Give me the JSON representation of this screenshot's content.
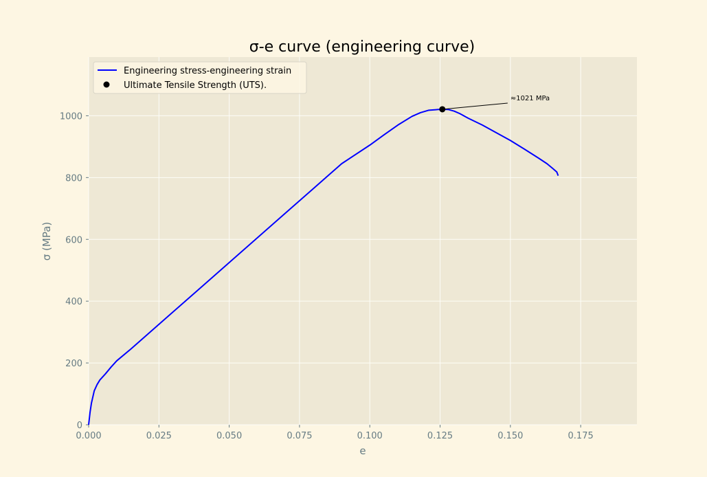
{
  "chart_data": {
    "type": "line",
    "title": "σ-e curve (engineering curve)",
    "xlabel": "e",
    "ylabel": "σ (MPa)",
    "xlim": [
      0.0,
      0.195
    ],
    "ylim": [
      0,
      1190
    ],
    "xticks": [
      0.0,
      0.025,
      0.05,
      0.075,
      0.1,
      0.125,
      0.15,
      0.175
    ],
    "xtick_labels": [
      "0.000",
      "0.025",
      "0.050",
      "0.075",
      "0.100",
      "0.125",
      "0.150",
      "0.175"
    ],
    "yticks": [
      0,
      200,
      400,
      600,
      800,
      1000
    ],
    "ytick_labels": [
      "0",
      "200",
      "400",
      "600",
      "800",
      "1000"
    ],
    "grid": true,
    "legend_position": "top-left",
    "series": [
      {
        "name": "Engineering stress-engineering strain",
        "color": "#0000ff",
        "x": [
          0.0,
          0.0005,
          0.001,
          0.002,
          0.003,
          0.004,
          0.006,
          0.008,
          0.01,
          0.015,
          0.02,
          0.03,
          0.04,
          0.05,
          0.06,
          0.07,
          0.08,
          0.09,
          0.1,
          0.105,
          0.11,
          0.115,
          0.118,
          0.121,
          0.124,
          0.126,
          0.128,
          0.13,
          0.132,
          0.135,
          0.14,
          0.145,
          0.15,
          0.155,
          0.16,
          0.163,
          0.165,
          0.1665,
          0.167
        ],
        "y": [
          0,
          40,
          70,
          110,
          130,
          145,
          165,
          187,
          207,
          245,
          285,
          365,
          445,
          525,
          605,
          685,
          765,
          845,
          905,
          938,
          970,
          998,
          1010,
          1018,
          1020,
          1021,
          1020,
          1015,
          1007,
          992,
          970,
          945,
          920,
          892,
          863,
          845,
          830,
          818,
          806
        ]
      }
    ],
    "markers": [
      {
        "name": "Ultimate Tensile Strength (UTS).",
        "color": "#000000",
        "x": 0.1258,
        "y": 1021
      }
    ],
    "annotations": [
      {
        "text": "≈1021 MPa",
        "x": 0.15,
        "y": 1050,
        "point_x": 0.1258,
        "point_y": 1021
      }
    ]
  },
  "colors": {
    "figure_bg": "#fdf6e3",
    "axes_bg": "#eee8d5",
    "grid": "#fdfdf8",
    "tick_text": "#657b83"
  }
}
